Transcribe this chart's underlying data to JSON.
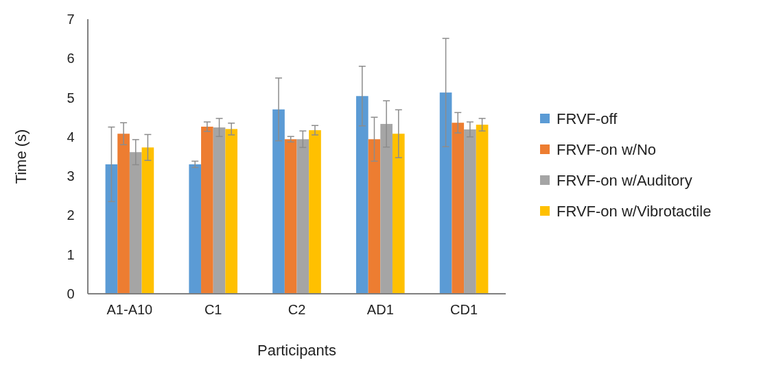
{
  "chart_data": {
    "type": "bar",
    "xlabel": "Participants",
    "ylabel": "Time (s)",
    "categories": [
      "A1-A10",
      "C1",
      "C2",
      "AD1",
      "CD1"
    ],
    "series": [
      {
        "name": "FRVF-off",
        "color": "#5b9bd5",
        "values": [
          3.3,
          3.3,
          4.7,
          5.04,
          5.13
        ],
        "errors": [
          0.95,
          0.08,
          0.8,
          0.76,
          1.38
        ]
      },
      {
        "name": "FRVF-on w/No",
        "color": "#ed7d31",
        "values": [
          4.08,
          4.26,
          3.94,
          3.94,
          4.36
        ],
        "errors": [
          0.28,
          0.12,
          0.07,
          0.56,
          0.26
        ]
      },
      {
        "name": "FRVF-on w/Auditory",
        "color": "#a5a5a5",
        "values": [
          3.61,
          4.24,
          3.94,
          4.33,
          4.19
        ],
        "errors": [
          0.32,
          0.23,
          0.21,
          0.59,
          0.19
        ]
      },
      {
        "name": "FRVF-on w/Vibrotactile",
        "color": "#ffc000",
        "values": [
          3.73,
          4.2,
          4.17,
          4.08,
          4.31
        ],
        "errors": [
          0.33,
          0.15,
          0.12,
          0.61,
          0.16
        ]
      }
    ],
    "ylim": [
      0,
      7
    ],
    "yticks": [
      0,
      1,
      2,
      3,
      4,
      5,
      6,
      7
    ],
    "grid": false,
    "legend": "right"
  }
}
